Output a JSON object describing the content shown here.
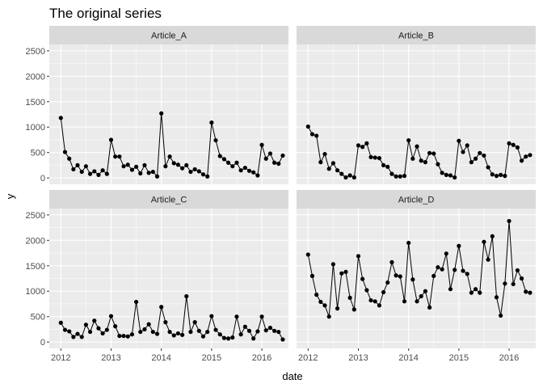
{
  "chart_data": {
    "type": "line",
    "title": "The original series",
    "xlabel": "date",
    "ylabel": "y",
    "xlim": [
      2011.77,
      2016.53
    ],
    "ylim": [
      -125,
      2625
    ],
    "x_ticks": [
      2012,
      2013,
      2014,
      2015,
      2016
    ],
    "x_tick_labels": [
      "2012",
      "2013",
      "2014",
      "2015",
      "2016"
    ],
    "y_ticks": [
      0,
      500,
      1000,
      1500,
      2000,
      2500
    ],
    "y_tick_labels": [
      "0",
      "500",
      "1000",
      "1500",
      "2000",
      "2500"
    ],
    "grid": true,
    "layout": "facet 2x2",
    "colors": {
      "panel_bg": "#ebebeb",
      "strip_bg": "#d9d9d9",
      "grid_major": "#ffffff",
      "line": "#000000",
      "point": "#000000"
    },
    "panels": [
      {
        "name": "Article_A",
        "x": [
          2012.0,
          2012.083,
          2012.167,
          2012.25,
          2012.333,
          2012.417,
          2012.5,
          2012.583,
          2012.667,
          2012.75,
          2012.833,
          2012.917,
          2013.0,
          2013.083,
          2013.167,
          2013.25,
          2013.333,
          2013.417,
          2013.5,
          2013.583,
          2013.667,
          2013.75,
          2013.833,
          2013.917,
          2014.0,
          2014.083,
          2014.167,
          2014.25,
          2014.333,
          2014.417,
          2014.5,
          2014.583,
          2014.667,
          2014.75,
          2014.833,
          2014.917,
          2015.0,
          2015.083,
          2015.167,
          2015.25,
          2015.333,
          2015.417,
          2015.5,
          2015.583,
          2015.667,
          2015.75,
          2015.833,
          2015.917,
          2016.0,
          2016.083,
          2016.167,
          2016.25,
          2016.333,
          2016.417
        ],
        "y": [
          1180,
          510,
          380,
          170,
          250,
          120,
          230,
          80,
          130,
          60,
          150,
          80,
          750,
          420,
          420,
          230,
          260,
          160,
          220,
          90,
          250,
          100,
          120,
          30,
          1270,
          230,
          420,
          290,
          260,
          190,
          250,
          120,
          170,
          130,
          70,
          30,
          1090,
          740,
          430,
          370,
          300,
          230,
          300,
          150,
          200,
          140,
          110,
          50,
          650,
          380,
          480,
          300,
          280,
          440
        ]
      },
      {
        "name": "Article_B",
        "x": [
          2012.0,
          2012.083,
          2012.167,
          2012.25,
          2012.333,
          2012.417,
          2012.5,
          2012.583,
          2012.667,
          2012.75,
          2012.833,
          2012.917,
          2013.0,
          2013.083,
          2013.167,
          2013.25,
          2013.333,
          2013.417,
          2013.5,
          2013.583,
          2013.667,
          2013.75,
          2013.833,
          2013.917,
          2014.0,
          2014.083,
          2014.167,
          2014.25,
          2014.333,
          2014.417,
          2014.5,
          2014.583,
          2014.667,
          2014.75,
          2014.833,
          2014.917,
          2015.0,
          2015.083,
          2015.167,
          2015.25,
          2015.333,
          2015.417,
          2015.5,
          2015.583,
          2015.667,
          2015.75,
          2015.833,
          2015.917,
          2016.0,
          2016.083,
          2016.167,
          2016.25,
          2016.333,
          2016.417
        ],
        "y": [
          1010,
          860,
          830,
          310,
          470,
          180,
          290,
          150,
          80,
          10,
          50,
          10,
          640,
          610,
          680,
          410,
          400,
          390,
          250,
          220,
          80,
          30,
          30,
          40,
          740,
          380,
          620,
          340,
          310,
          490,
          480,
          270,
          100,
          60,
          50,
          10,
          730,
          510,
          640,
          310,
          380,
          490,
          440,
          210,
          70,
          40,
          60,
          40,
          680,
          650,
          600,
          340,
          420,
          450
        ]
      },
      {
        "name": "Article_C",
        "x": [
          2012.0,
          2012.083,
          2012.167,
          2012.25,
          2012.333,
          2012.417,
          2012.5,
          2012.583,
          2012.667,
          2012.75,
          2012.833,
          2012.917,
          2013.0,
          2013.083,
          2013.167,
          2013.25,
          2013.333,
          2013.417,
          2013.5,
          2013.583,
          2013.667,
          2013.75,
          2013.833,
          2013.917,
          2014.0,
          2014.083,
          2014.167,
          2014.25,
          2014.333,
          2014.417,
          2014.5,
          2014.583,
          2014.667,
          2014.75,
          2014.833,
          2014.917,
          2015.0,
          2015.083,
          2015.167,
          2015.25,
          2015.333,
          2015.417,
          2015.5,
          2015.583,
          2015.667,
          2015.75,
          2015.833,
          2015.917,
          2016.0,
          2016.083,
          2016.167,
          2016.25,
          2016.333,
          2016.417
        ],
        "y": [
          380,
          240,
          210,
          100,
          160,
          100,
          340,
          200,
          420,
          270,
          170,
          240,
          510,
          310,
          120,
          120,
          110,
          150,
          790,
          200,
          250,
          350,
          200,
          160,
          690,
          390,
          200,
          130,
          170,
          140,
          900,
          200,
          390,
          220,
          110,
          200,
          510,
          240,
          150,
          80,
          70,
          90,
          500,
          150,
          300,
          220,
          70,
          210,
          500,
          230,
          280,
          220,
          200,
          50
        ]
      },
      {
        "name": "Article_D",
        "x": [
          2012.0,
          2012.083,
          2012.167,
          2012.25,
          2012.333,
          2012.417,
          2012.5,
          2012.583,
          2012.667,
          2012.75,
          2012.833,
          2012.917,
          2013.0,
          2013.083,
          2013.167,
          2013.25,
          2013.333,
          2013.417,
          2013.5,
          2013.583,
          2013.667,
          2013.75,
          2013.833,
          2013.917,
          2014.0,
          2014.083,
          2014.167,
          2014.25,
          2014.333,
          2014.417,
          2014.5,
          2014.583,
          2014.667,
          2014.75,
          2014.833,
          2014.917,
          2015.0,
          2015.083,
          2015.167,
          2015.25,
          2015.333,
          2015.417,
          2015.5,
          2015.583,
          2015.667,
          2015.75,
          2015.833,
          2015.917,
          2016.0,
          2016.083,
          2016.167,
          2016.25,
          2016.333,
          2016.417
        ],
        "y": [
          1720,
          1300,
          930,
          790,
          720,
          500,
          1530,
          660,
          1350,
          1380,
          870,
          640,
          1690,
          1240,
          1020,
          820,
          800,
          720,
          980,
          1170,
          1570,
          1310,
          1290,
          800,
          1950,
          1230,
          800,
          900,
          1000,
          680,
          1300,
          1470,
          1430,
          1740,
          1040,
          1420,
          1890,
          1400,
          1340,
          970,
          1040,
          970,
          1970,
          1620,
          2080,
          880,
          520,
          1150,
          2380,
          1140,
          1410,
          1250,
          990,
          970
        ]
      }
    ]
  }
}
